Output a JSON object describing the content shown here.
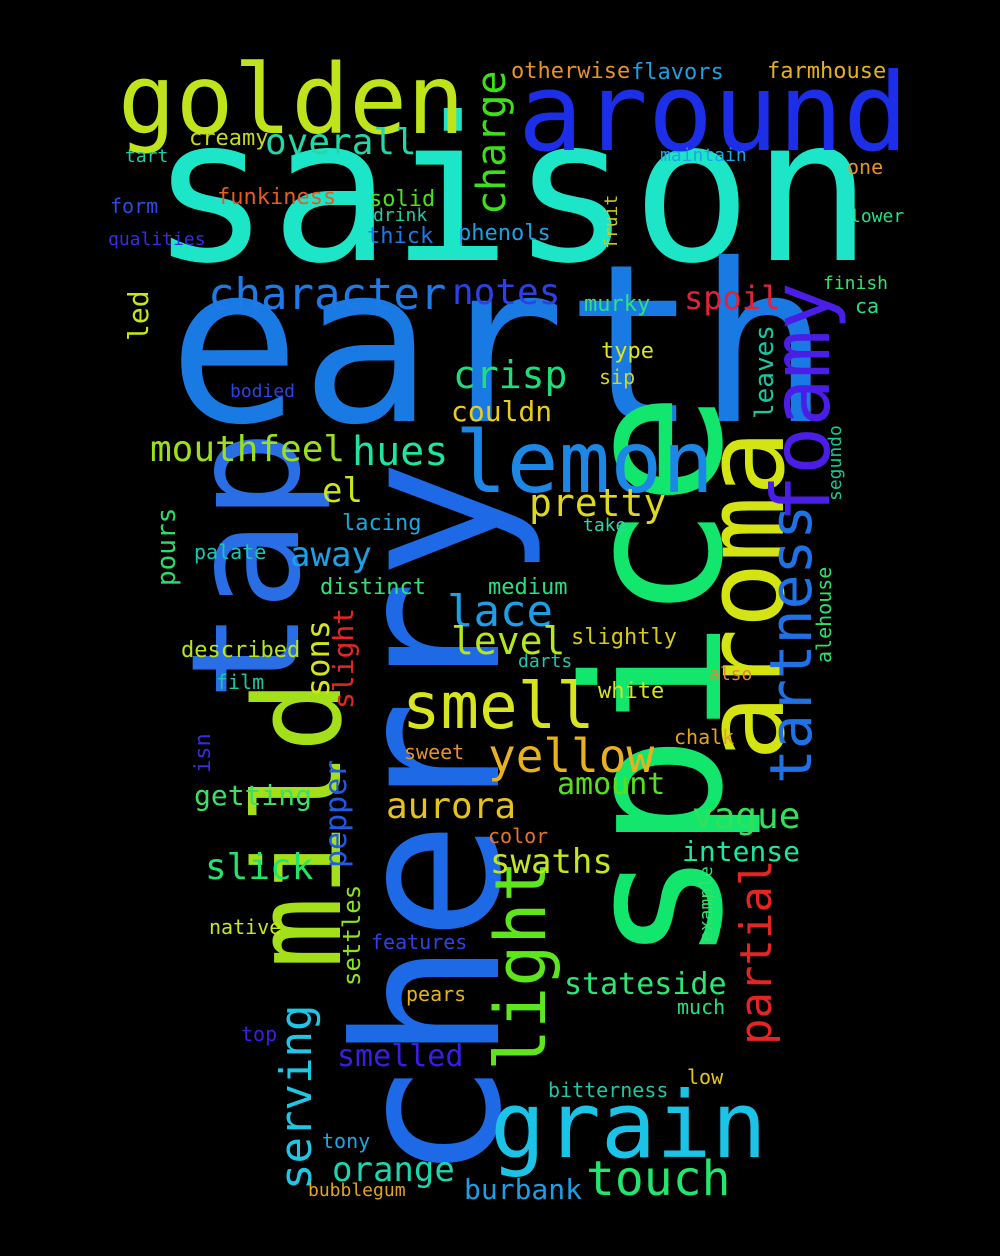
{
  "words": [
    {
      "text": "saison",
      "color": "#1de6c8"
    },
    {
      "text": "earth",
      "color": "#1a7ae3"
    },
    {
      "text": "cherry",
      "color": "#1d69e6"
    },
    {
      "text": "spice",
      "color": "#12e66d"
    },
    {
      "text": "around",
      "color": "#1c2ee8"
    },
    {
      "text": "golden",
      "color": "#bfe41c"
    },
    {
      "text": "aroma",
      "color": "#d4e412"
    },
    {
      "text": "tap",
      "color": "#2a6ee6"
    },
    {
      "text": "mild",
      "color": "#a4e01a"
    },
    {
      "text": "lemon",
      "color": "#1d87e6"
    },
    {
      "text": "grain",
      "color": "#1bc3e6"
    },
    {
      "text": "foamy",
      "color": "#4a1ee6"
    },
    {
      "text": "light",
      "color": "#5de61c"
    },
    {
      "text": "tartness",
      "color": "#1e72e6"
    },
    {
      "text": "smell",
      "color": "#d8e41d"
    },
    {
      "text": "character",
      "color": "#1d7ae6"
    },
    {
      "text": "yellow",
      "color": "#e6b31e"
    },
    {
      "text": "touch",
      "color": "#22e66e"
    },
    {
      "text": "partial",
      "color": "#e62424"
    },
    {
      "text": "serving",
      "color": "#1fc7e6"
    },
    {
      "text": "charge",
      "color": "#3ee01a"
    },
    {
      "text": "overall",
      "color": "#21d9a8"
    },
    {
      "text": "mouthfeel",
      "color": "#9ae01e"
    },
    {
      "text": "hues",
      "color": "#1ee6a0"
    },
    {
      "text": "notes",
      "color": "#2f3fe6"
    },
    {
      "text": "crisp",
      "color": "#1de07a"
    },
    {
      "text": "pretty",
      "color": "#dfd81c"
    },
    {
      "text": "aurora",
      "color": "#e6c31c"
    },
    {
      "text": "lace",
      "color": "#1c9fe6"
    },
    {
      "text": "level",
      "color": "#b7e61c"
    },
    {
      "text": "vague",
      "color": "#33e05a"
    },
    {
      "text": "swaths",
      "color": "#c4e622"
    },
    {
      "text": "orange",
      "color": "#1dd6b0"
    },
    {
      "text": "intense",
      "color": "#1ce6a4"
    },
    {
      "text": "slick",
      "color": "#21e66c"
    },
    {
      "text": "smelled",
      "color": "#3a1ee6"
    },
    {
      "text": "stateside",
      "color": "#2ee676"
    },
    {
      "text": "pepper",
      "color": "#1f5be6"
    },
    {
      "text": "burbank",
      "color": "#1e9ee6"
    },
    {
      "text": "away",
      "color": "#1da0e6"
    },
    {
      "text": "el",
      "color": "#cbe61d"
    },
    {
      "text": "spoil",
      "color": "#e0223a"
    },
    {
      "text": "sons",
      "color": "#d4e51c"
    },
    {
      "text": "slight",
      "color": "#e62525"
    },
    {
      "text": "amount",
      "color": "#59e01d"
    },
    {
      "text": "getting",
      "color": "#3de067"
    },
    {
      "text": "couldn",
      "color": "#e6cc1d"
    },
    {
      "text": "settles",
      "color": "#8be61f"
    },
    {
      "text": "leaves",
      "color": "#1cc6a6"
    },
    {
      "text": "pours",
      "color": "#27e06a"
    },
    {
      "text": "described",
      "color": "#b8e61c"
    },
    {
      "text": "slightly",
      "color": "#d9c91d"
    },
    {
      "text": "white",
      "color": "#d8e41d"
    },
    {
      "text": "medium",
      "color": "#27e086"
    },
    {
      "text": "distinct",
      "color": "#33e078"
    },
    {
      "text": "lacing",
      "color": "#1ca6e0"
    },
    {
      "text": "farmhouse",
      "color": "#e6b21c"
    },
    {
      "text": "otherwise",
      "color": "#e6932b"
    },
    {
      "text": "flavors",
      "color": "#1d9fe6"
    },
    {
      "text": "funkiness",
      "color": "#e65a23"
    },
    {
      "text": "creamy",
      "color": "#c7d91d"
    },
    {
      "text": "solid",
      "color": "#4ae01c"
    },
    {
      "text": "thick",
      "color": "#1c7ae6"
    },
    {
      "text": "phenols",
      "color": "#1ca0e6"
    },
    {
      "text": "murky",
      "color": "#2ee086"
    },
    {
      "text": "type",
      "color": "#dce61c"
    },
    {
      "text": "sip",
      "color": "#d6d21c"
    },
    {
      "text": "led",
      "color": "#c7e61c"
    },
    {
      "text": "segundo",
      "color": "#1ac69c"
    },
    {
      "text": "alehouse",
      "color": "#2de06a"
    },
    {
      "text": "isn",
      "color": "#3a2be6"
    },
    {
      "text": "palate",
      "color": "#1cc6b4"
    },
    {
      "text": "film",
      "color": "#1ec8a6"
    },
    {
      "text": "sweet",
      "color": "#e6922b"
    },
    {
      "text": "color",
      "color": "#e6752b"
    },
    {
      "text": "chalk",
      "color": "#e6a41c"
    },
    {
      "text": "also",
      "color": "#e6862b"
    },
    {
      "text": "take",
      "color": "#27d9a6"
    },
    {
      "text": "darts",
      "color": "#1ec8b4"
    },
    {
      "text": "native",
      "color": "#c9e61c"
    },
    {
      "text": "features",
      "color": "#2e43e6"
    },
    {
      "text": "example",
      "color": "#36e06d"
    },
    {
      "text": "pears",
      "color": "#e6b41c"
    },
    {
      "text": "much",
      "color": "#27e07a"
    },
    {
      "text": "top",
      "color": "#3a1ee6"
    },
    {
      "text": "low",
      "color": "#e6c31c"
    },
    {
      "text": "bitterness",
      "color": "#1ec8a6"
    },
    {
      "text": "tony",
      "color": "#1ca6e6"
    },
    {
      "text": "bubblegum",
      "color": "#e6a41c"
    },
    {
      "text": "tart",
      "color": "#27c9a6"
    },
    {
      "text": "form",
      "color": "#2e4be6"
    },
    {
      "text": "qualities",
      "color": "#3a2be6"
    },
    {
      "text": "drink",
      "color": "#27c9a6"
    },
    {
      "text": "fruit",
      "color": "#c9c91c"
    },
    {
      "text": "maintain",
      "color": "#1ca6e6"
    },
    {
      "text": "one",
      "color": "#e6932b"
    },
    {
      "text": "lower",
      "color": "#27e086"
    },
    {
      "text": "finish",
      "color": "#36e06d"
    },
    {
      "text": "ca",
      "color": "#27e086"
    },
    {
      "text": "bodied",
      "color": "#2e43e6"
    }
  ]
}
